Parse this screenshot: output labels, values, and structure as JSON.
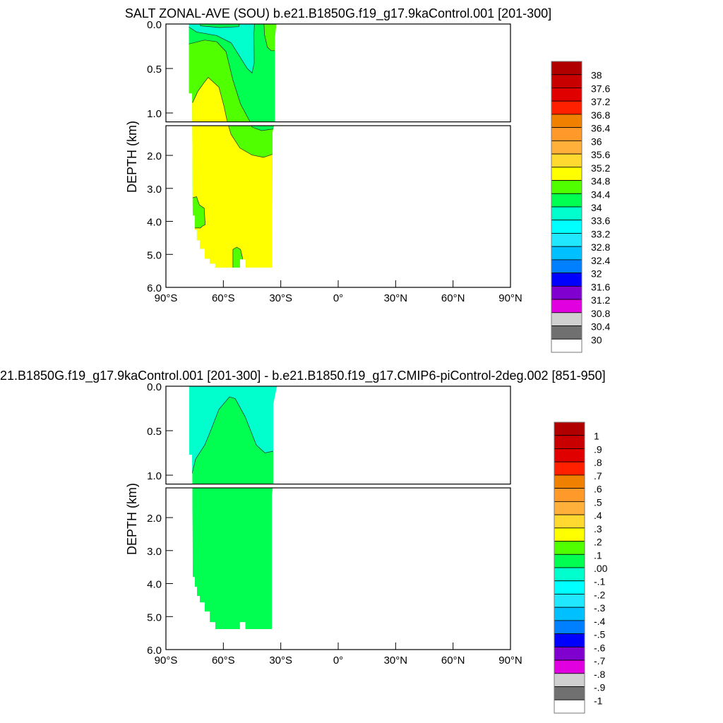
{
  "chart_data": [
    {
      "type": "contour",
      "title": "SALT ZONAL-AVE (SOU) b.e21.B1850G.f19_g17.9kaControl.001 [201-300]",
      "ylabel": "DEPTH (km)",
      "xlabel": "",
      "xlim": [
        -90,
        90
      ],
      "ylim": [
        0,
        6
      ],
      "depth_break_km": 1.1,
      "xticks": [
        {
          "v": -90,
          "label": "90°S"
        },
        {
          "v": -60,
          "label": "60°S"
        },
        {
          "v": -30,
          "label": "30°S"
        },
        {
          "v": 0,
          "label": "0°"
        },
        {
          "v": 30,
          "label": "30°N"
        },
        {
          "v": 60,
          "label": "60°N"
        },
        {
          "v": 90,
          "label": "90°N"
        }
      ],
      "yticks": [
        {
          "v": 0,
          "label": "0.0"
        },
        {
          "v": 0.5,
          "label": "0.5"
        },
        {
          "v": 1.0,
          "label": "1.0"
        },
        {
          "v": 2,
          "label": "2.0"
        },
        {
          "v": 3,
          "label": "3.0"
        },
        {
          "v": 4,
          "label": "4.0"
        },
        {
          "v": 5,
          "label": "5.0"
        },
        {
          "v": 6,
          "label": "6.0"
        }
      ],
      "colorbar": {
        "labels": [
          "38",
          "37.6",
          "37.2",
          "36.8",
          "36.4",
          "36",
          "35.6",
          "35.2",
          "34.8",
          "34.4",
          "34",
          "33.6",
          "33.2",
          "32.8",
          "32.4",
          "32",
          "31.6",
          "31.2",
          "30.8",
          "30.4",
          "30"
        ],
        "colors": [
          "#b00000",
          "#c80000",
          "#e00000",
          "#ff2000",
          "#f08000",
          "#ff9a2a",
          "#ffb03a",
          "#ffd830",
          "#ffff00",
          "#50ff00",
          "#00ff50",
          "#00ffcc",
          "#00ffff",
          "#20e8ff",
          "#00c0ff",
          "#0080ff",
          "#0000ff",
          "#8000d0",
          "#e000e0",
          "#d0d0d0",
          "#707070",
          "#ffffff"
        ]
      },
      "ocean_mask": [
        [
          -78,
          0
        ],
        [
          -32.3,
          0
        ],
        [
          -33,
          0.15
        ],
        [
          -33,
          1.1
        ],
        [
          -34.3,
          1.3
        ],
        [
          -34.6,
          5.4
        ],
        [
          -48.3,
          5.4
        ],
        [
          -48.3,
          5.15
        ],
        [
          -51.3,
          5.15
        ],
        [
          -51.3,
          5.4
        ],
        [
          -64.2,
          5.4
        ],
        [
          -64.2,
          5.28
        ],
        [
          -67.1,
          5.28
        ],
        [
          -67.1,
          5.13
        ],
        [
          -69.7,
          5.13
        ],
        [
          -69.7,
          4.83
        ],
        [
          -72.3,
          4.83
        ],
        [
          -72.3,
          4.57
        ],
        [
          -73.8,
          4.57
        ],
        [
          -73.8,
          4.25
        ],
        [
          -74.9,
          4.25
        ],
        [
          -74.9,
          3.82
        ],
        [
          -76,
          3.82
        ],
        [
          -76.3,
          0.78
        ],
        [
          -78,
          0.78
        ]
      ],
      "base_level": {
        "range": "34-34.4",
        "color": "#00ff50"
      },
      "regions": [
        {
          "range": "34.4-34.8",
          "color": "#50ff00",
          "points": [
            [
              -79,
              0.23
            ],
            [
              -69.7,
              0.18
            ],
            [
              -63.4,
              0.2
            ],
            [
              -58.6,
              0.31
            ],
            [
              -55,
              0.63
            ],
            [
              -51,
              0.9
            ],
            [
              -46.5,
              1.08
            ],
            [
              -45,
              1.14
            ],
            [
              -40,
              1.25
            ],
            [
              -34,
              1.2
            ],
            [
              -30,
              1.2
            ],
            [
              -30,
              6
            ],
            [
              -79,
              6
            ]
          ]
        },
        {
          "range": "34.8-35.2",
          "color": "#ffff00",
          "points": [
            [
              -79,
              0.9
            ],
            [
              -76,
              0.88
            ],
            [
              -73.4,
              0.76
            ],
            [
              -70.4,
              0.67
            ],
            [
              -67.9,
              0.6
            ],
            [
              -62.3,
              0.71
            ],
            [
              -59.7,
              0.92
            ],
            [
              -57.9,
              1.1
            ],
            [
              -56,
              1.36
            ],
            [
              -51.3,
              1.78
            ],
            [
              -45,
              1.99
            ],
            [
              -39,
              2.06
            ],
            [
              -34,
              1.96
            ],
            [
              -30,
              1.96
            ],
            [
              -30,
              6
            ],
            [
              -79,
              6
            ]
          ]
        },
        {
          "range": "34.4-34.8",
          "color": "#50ff00",
          "points": [
            [
              -77,
              3.3
            ],
            [
              -74,
              3.25
            ],
            [
              -72.5,
              3.5
            ],
            [
              -70,
              3.6
            ],
            [
              -69.5,
              4.1
            ],
            [
              -71,
              4.15
            ],
            [
              -72,
              4.2
            ],
            [
              -77,
              4.2
            ]
          ]
        },
        {
          "range": "34.4-34.8",
          "color": "#50ff00",
          "points": [
            [
              -55,
              5.5
            ],
            [
              -55,
              4.85
            ],
            [
              -53,
              4.78
            ],
            [
              -51,
              4.85
            ],
            [
              -50,
              5.1
            ],
            [
              -50,
              5.5
            ]
          ]
        },
        {
          "range": "34.4-34.8",
          "color": "#50ff00",
          "points": [
            [
              -39,
              -0.1
            ],
            [
              -38.5,
              0.12
            ],
            [
              -37,
              0.26
            ],
            [
              -35,
              0.3
            ],
            [
              -30,
              0.3
            ],
            [
              -30,
              -0.1
            ]
          ]
        },
        {
          "range": "33.6-34",
          "color": "#00ffcc",
          "points": [
            [
              -79,
              0.02
            ],
            [
              -74,
              0.09
            ],
            [
              -63.4,
              0.13
            ],
            [
              -56,
              0.21
            ],
            [
              -51.3,
              0.37
            ],
            [
              -47.5,
              0.5
            ],
            [
              -45,
              0.55
            ],
            [
              -43.9,
              0.44
            ],
            [
              -44,
              0.1
            ],
            [
              -43.5,
              -0.1
            ],
            [
              -79,
              -0.1
            ]
          ]
        },
        {
          "range": "34-34.4",
          "color": "#00ff50",
          "points": [
            [
              -72,
              -0.1
            ],
            [
              -72,
              0.02
            ],
            [
              -62,
              0.04
            ],
            [
              -52,
              0.03
            ],
            [
              -50,
              -0.1
            ]
          ]
        }
      ]
    },
    {
      "type": "contour",
      "title": "21.B1850G.f19_g17.9kaControl.001 [201-300] - b.e21.B1850.f19_g17.CMIP6-piControl-2deg.002 [851-950]",
      "ylabel": "DEPTH (km)",
      "xlabel": "",
      "xlim": [
        -90,
        90
      ],
      "ylim": [
        0,
        6
      ],
      "depth_break_km": 1.1,
      "xticks": [
        {
          "v": -90,
          "label": "90°S"
        },
        {
          "v": -60,
          "label": "60°S"
        },
        {
          "v": -30,
          "label": "30°S"
        },
        {
          "v": 0,
          "label": "0°"
        },
        {
          "v": 30,
          "label": "30°N"
        },
        {
          "v": 60,
          "label": "60°N"
        },
        {
          "v": 90,
          "label": "90°N"
        }
      ],
      "yticks": [
        {
          "v": 0,
          "label": "0.0"
        },
        {
          "v": 0.5,
          "label": "0.5"
        },
        {
          "v": 1.0,
          "label": "1.0"
        },
        {
          "v": 2,
          "label": "2.0"
        },
        {
          "v": 3,
          "label": "3.0"
        },
        {
          "v": 4,
          "label": "4.0"
        },
        {
          "v": 5,
          "label": "5.0"
        },
        {
          "v": 6,
          "label": "6.0"
        }
      ],
      "colorbar": {
        "labels": [
          "1",
          ".9",
          ".8",
          ".7",
          ".6",
          ".5",
          ".4",
          ".3",
          ".2",
          ".1",
          ".00",
          "-.1",
          "-.2",
          "-.3",
          "-.4",
          "-.5",
          "-.6",
          "-.7",
          "-.8",
          "-.9",
          "-1"
        ],
        "colors": [
          "#b00000",
          "#c80000",
          "#e00000",
          "#ff2000",
          "#f08000",
          "#ff9a2a",
          "#ffb03a",
          "#ffd830",
          "#ffff00",
          "#50ff00",
          "#00ff50",
          "#00ffcc",
          "#00ffff",
          "#20e8ff",
          "#00c0ff",
          "#0080ff",
          "#0000ff",
          "#8000d0",
          "#e000e0",
          "#d0d0d0",
          "#707070",
          "#ffffff"
        ]
      },
      "ocean_mask": [
        [
          -77.8,
          0
        ],
        [
          -32,
          0
        ],
        [
          -33.9,
          0.2
        ],
        [
          -33.9,
          1.1
        ],
        [
          -34.6,
          1.3
        ],
        [
          -34.6,
          5.38
        ],
        [
          -48.5,
          5.38
        ],
        [
          -48.5,
          5.17
        ],
        [
          -51.3,
          5.17
        ],
        [
          -51.3,
          5.38
        ],
        [
          -64.2,
          5.38
        ],
        [
          -64.2,
          5.17
        ],
        [
          -67.1,
          5.17
        ],
        [
          -67.1,
          4.85
        ],
        [
          -69.7,
          4.85
        ],
        [
          -69.7,
          4.57
        ],
        [
          -72.3,
          4.57
        ],
        [
          -72.3,
          4.38
        ],
        [
          -73.8,
          4.38
        ],
        [
          -73.8,
          4.1
        ],
        [
          -74.9,
          4.1
        ],
        [
          -74.9,
          3.8
        ],
        [
          -76,
          3.8
        ],
        [
          -76.3,
          0.77
        ],
        [
          -77.8,
          0.77
        ]
      ],
      "base_level": {
        "range": ".00-.1",
        "color": "#00ff50"
      },
      "regions": [
        {
          "range": "-.1-.00",
          "color": "#00ffcc",
          "points": [
            [
              -80,
              0.98
            ],
            [
              -76.3,
              0.98
            ],
            [
              -74.5,
              0.82
            ],
            [
              -69.7,
              0.66
            ],
            [
              -67,
              0.52
            ],
            [
              -62.3,
              0.26
            ],
            [
              -56.8,
              0.12
            ],
            [
              -53.8,
              0.14
            ],
            [
              -48.7,
              0.34
            ],
            [
              -42.8,
              0.66
            ],
            [
              -38.3,
              0.75
            ],
            [
              -34,
              0.73
            ],
            [
              -30,
              0.73
            ],
            [
              -30,
              -0.1
            ],
            [
              -80,
              -0.1
            ]
          ]
        }
      ]
    }
  ]
}
